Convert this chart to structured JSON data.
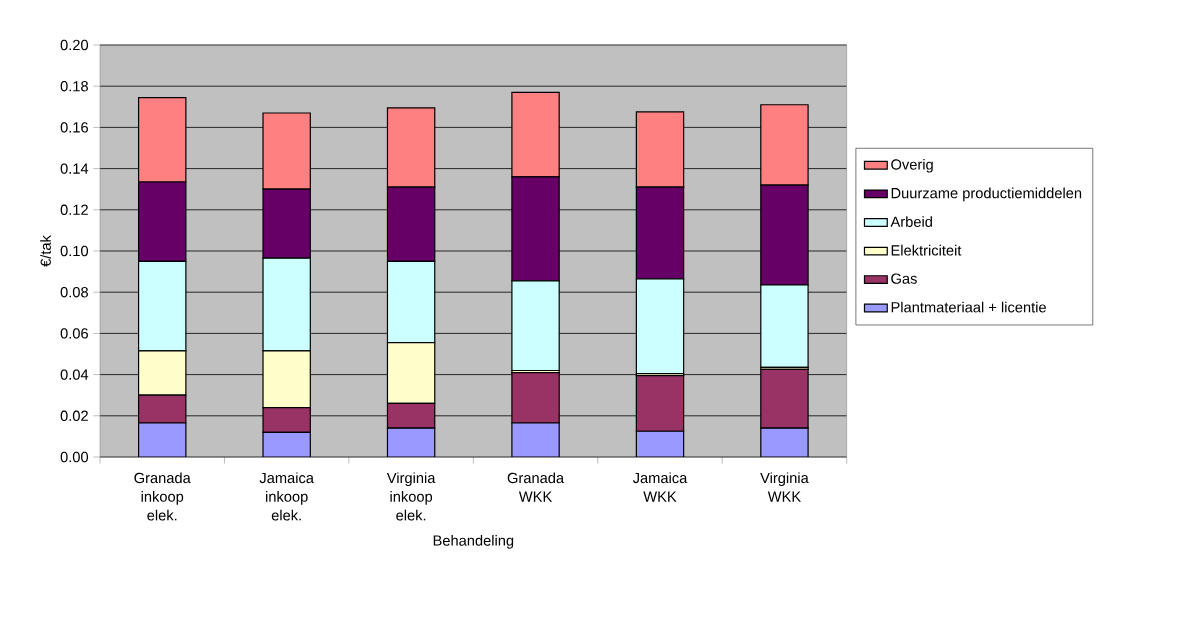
{
  "chart_data": {
    "type": "bar",
    "stacked": true,
    "xlabel": "Behandeling",
    "ylabel": "€/tak",
    "categories": [
      "Granada inkoop elek.",
      "Jamaica inkoop elek.",
      "Virginia inkoop elek.",
      "Granada WKK",
      "Jamaica WKK",
      "Virginia WKK"
    ],
    "series": [
      {
        "name": "Plantmateriaal + licentie",
        "color": "#9999ff",
        "values": [
          0.0165,
          0.012,
          0.014,
          0.0165,
          0.0125,
          0.014
        ]
      },
      {
        "name": "Gas",
        "color": "#993366",
        "values": [
          0.0135,
          0.012,
          0.012,
          0.0245,
          0.027,
          0.0285
        ]
      },
      {
        "name": "Elektriciteit",
        "color": "#ffffcc",
        "values": [
          0.0215,
          0.0275,
          0.0295,
          0.001,
          0.001,
          0.001
        ]
      },
      {
        "name": "Arbeid",
        "color": "#ccffff",
        "values": [
          0.0435,
          0.045,
          0.0395,
          0.0435,
          0.046,
          0.04
        ]
      },
      {
        "name": "Duurzame productiemiddelen",
        "color": "#660066",
        "values": [
          0.0385,
          0.0335,
          0.036,
          0.0505,
          0.0445,
          0.0485
        ]
      },
      {
        "name": "Overig",
        "color": "#ff8080",
        "values": [
          0.041,
          0.037,
          0.0385,
          0.041,
          0.0365,
          0.039
        ]
      }
    ],
    "ylim": [
      0,
      0.2
    ],
    "yticks": [
      {
        "value": 0,
        "label": "0.00"
      },
      {
        "value": 0.02,
        "label": "0.02"
      },
      {
        "value": 0.04,
        "label": "0.04"
      },
      {
        "value": 0.06,
        "label": "0.06"
      },
      {
        "value": 0.08,
        "label": "0.08"
      },
      {
        "value": 0.1,
        "label": "0.10"
      },
      {
        "value": 0.12,
        "label": "0.12"
      },
      {
        "value": 0.14,
        "label": "0.14"
      },
      {
        "value": 0.16,
        "label": "0.16"
      },
      {
        "value": 0.18,
        "label": "0.18"
      },
      {
        "value": 0.2,
        "label": "0.20"
      }
    ],
    "grid": "y",
    "legend": "right"
  }
}
